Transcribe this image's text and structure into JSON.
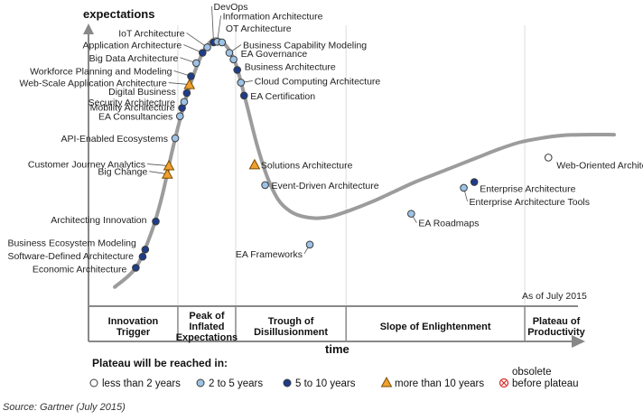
{
  "chart_data": {
    "type": "scatter",
    "title": "",
    "ylabel": "expectations",
    "xlabel": "time",
    "as_of": "As of July 2015",
    "source": "Source: Gartner (July 2015)",
    "phases": [
      {
        "lines": [
          "Innovation",
          "Trigger"
        ],
        "start": 0,
        "end": 17
      },
      {
        "lines": [
          "Peak of",
          "Inflated",
          "Expectations"
        ],
        "start": 17,
        "end": 28
      },
      {
        "lines": [
          "Trough of",
          "Disillusionment"
        ],
        "start": 28,
        "end": 49
      },
      {
        "lines": [
          "Slope of Enlightenment"
        ],
        "start": 49,
        "end": 83
      },
      {
        "lines": [
          "Plateau of",
          "Productivity"
        ],
        "start": 83,
        "end": 100
      }
    ],
    "ylim": [
      0,
      100
    ],
    "xlim": [
      0,
      100
    ],
    "curve": [
      [
        5,
        5
      ],
      [
        9,
        12
      ],
      [
        12,
        25
      ],
      [
        14,
        38
      ],
      [
        16,
        55
      ],
      [
        18,
        70
      ],
      [
        20,
        82
      ],
      [
        22,
        91
      ],
      [
        24,
        95
      ],
      [
        26,
        93
      ],
      [
        28,
        86
      ],
      [
        30,
        72
      ],
      [
        32,
        57
      ],
      [
        34,
        45
      ],
      [
        36,
        37
      ],
      [
        38,
        33
      ],
      [
        40,
        31
      ],
      [
        43,
        30
      ],
      [
        46,
        30.5
      ],
      [
        50,
        33
      ],
      [
        54,
        36
      ],
      [
        58,
        39.5
      ],
      [
        62,
        43
      ],
      [
        66,
        46
      ],
      [
        70,
        49
      ],
      [
        74,
        52
      ],
      [
        78,
        55
      ],
      [
        82,
        57.5
      ],
      [
        86,
        59
      ],
      [
        90,
        60
      ],
      [
        94,
        60.3
      ],
      [
        100,
        60.3
      ]
    ],
    "legend": {
      "title": "Plateau will be reached in:",
      "items": [
        {
          "key": "lt2",
          "label": "less than 2 years",
          "marker": "circle",
          "fill": "#ffffff"
        },
        {
          "key": "2to5",
          "label": "2 to 5 years",
          "marker": "circle",
          "fill": "#9dc3e6"
        },
        {
          "key": "5to10",
          "label": "5 to 10 years",
          "marker": "circle",
          "fill": "#1f3c88"
        },
        {
          "key": "gt10",
          "label": "more than 10 years",
          "marker": "triangle",
          "fill": "#f0a030"
        },
        {
          "key": "obsolete",
          "label_line1": "obsolete",
          "label_line2": "before plateau",
          "marker": "x-circle",
          "fill": "#ffffff"
        }
      ]
    },
    "points": [
      {
        "name": "Economic Architecture",
        "x": 9.0,
        "y": 12.0,
        "cat": "5to10"
      },
      {
        "name": "Software-Defined Architecture",
        "x": 10.3,
        "y": 16.0,
        "cat": "5to10"
      },
      {
        "name": "Business Ecosystem Modeling",
        "x": 10.8,
        "y": 18.6,
        "cat": "5to10"
      },
      {
        "name": "Architecting Innovation",
        "x": 12.8,
        "y": 28.8,
        "cat": "5to10"
      },
      {
        "name": "Big Change",
        "x": 15.0,
        "y": 46.0,
        "cat": "gt10"
      },
      {
        "name": "Customer Journey Analytics",
        "x": 15.3,
        "y": 49.0,
        "cat": "gt10"
      },
      {
        "name": "API-Enabled Ecosystems",
        "x": 16.5,
        "y": 59.0,
        "cat": "2to5"
      },
      {
        "name": "EA Consultancies",
        "x": 17.4,
        "y": 67.0,
        "cat": "2to5"
      },
      {
        "name": "Mobility Architecture",
        "x": 17.8,
        "y": 70.0,
        "cat": "5to10"
      },
      {
        "name": "Security Architecture",
        "x": 18.2,
        "y": 72.2,
        "cat": "2to5"
      },
      {
        "name": "Digital Business",
        "x": 18.7,
        "y": 75.4,
        "cat": "5to10"
      },
      {
        "name": "Web-Scale Application Architecture",
        "x": 19.2,
        "y": 78.5,
        "cat": "gt10"
      },
      {
        "name": "Workforce Planning and Modeling",
        "x": 19.5,
        "y": 81.5,
        "cat": "5to10"
      },
      {
        "name": "Big Data Architecture",
        "x": 20.5,
        "y": 86.3,
        "cat": "2to5"
      },
      {
        "name": "Application Architecture",
        "x": 21.7,
        "y": 90.0,
        "cat": "5to10"
      },
      {
        "name": "IoT Architecture",
        "x": 22.6,
        "y": 92.0,
        "cat": "2to5"
      },
      {
        "name": "DevOps",
        "x": 23.8,
        "y": 93.8,
        "cat": "5to10"
      },
      {
        "name": "Information Architecture",
        "x": 24.5,
        "y": 94.0,
        "cat": "2to5"
      },
      {
        "name": "OT Architecture",
        "x": 25.4,
        "y": 93.8,
        "cat": "2to5"
      },
      {
        "name": "Business Capability Modeling",
        "x": 26.8,
        "y": 90.0,
        "cat": "2to5"
      },
      {
        "name": "EA Governance",
        "x": 27.6,
        "y": 87.6,
        "cat": "2to5"
      },
      {
        "name": "Business Architecture",
        "x": 28.3,
        "y": 83.8,
        "cat": "5to10"
      },
      {
        "name": "Cloud Computing Architecture",
        "x": 29.0,
        "y": 79.2,
        "cat": "2to5"
      },
      {
        "name": "EA Certification",
        "x": 29.6,
        "y": 74.5,
        "cat": "5to10"
      },
      {
        "name": "Solutions Architecture",
        "x": 31.6,
        "y": 49.4,
        "cat": "gt10"
      },
      {
        "name": "Event-Driven Architecture",
        "x": 33.6,
        "y": 42.0,
        "cat": "2to5"
      },
      {
        "name": "EA Frameworks",
        "x": 42.1,
        "y": 20.4,
        "cat": "2to5"
      },
      {
        "name": "EA Roadmaps",
        "x": 61.4,
        "y": 31.6,
        "cat": "2to5"
      },
      {
        "name": "Enterprise Architecture Tools",
        "x": 71.4,
        "y": 41.0,
        "cat": "2to5"
      },
      {
        "name": "Enterprise Architecture",
        "x": 73.4,
        "y": 43.1,
        "cat": "5to10"
      },
      {
        "name": "Web-Oriented Architecture",
        "x": 87.5,
        "y": 52.0,
        "cat": "lt2"
      }
    ]
  }
}
